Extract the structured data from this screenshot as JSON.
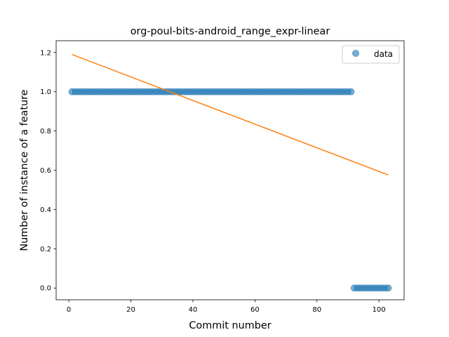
{
  "chart_data": {
    "type": "scatter",
    "title": "org-poul-bits-android_range_expr-linear",
    "xlabel": "Commit number",
    "ylabel": "Number of instance of a feature",
    "xlim": [
      -4.1,
      108.1
    ],
    "ylim": [
      -0.06,
      1.26
    ],
    "xticks": [
      0,
      20,
      40,
      60,
      80,
      100
    ],
    "xtick_labels": [
      "0",
      "20",
      "40",
      "60",
      "80",
      "100"
    ],
    "yticks": [
      0.0,
      0.2,
      0.4,
      0.6,
      0.8,
      1.0,
      1.2
    ],
    "ytick_labels": [
      "0.0",
      "0.2",
      "0.4",
      "0.6",
      "0.8",
      "1.0",
      "1.2"
    ],
    "grid": false,
    "legend": {
      "placement": "top-right",
      "entries": [
        "data"
      ]
    },
    "series": [
      {
        "name": "data",
        "kind": "points",
        "color": "#1f77b4",
        "segments": [
          {
            "x_from": 1,
            "x_to": 91,
            "y": 1
          },
          {
            "x_from": 92,
            "x_to": 103,
            "y": 0
          }
        ]
      },
      {
        "kind": "line",
        "color": "#ff7f0e",
        "x": [
          1,
          103
        ],
        "y": [
          1.19,
          0.576
        ]
      }
    ]
  }
}
